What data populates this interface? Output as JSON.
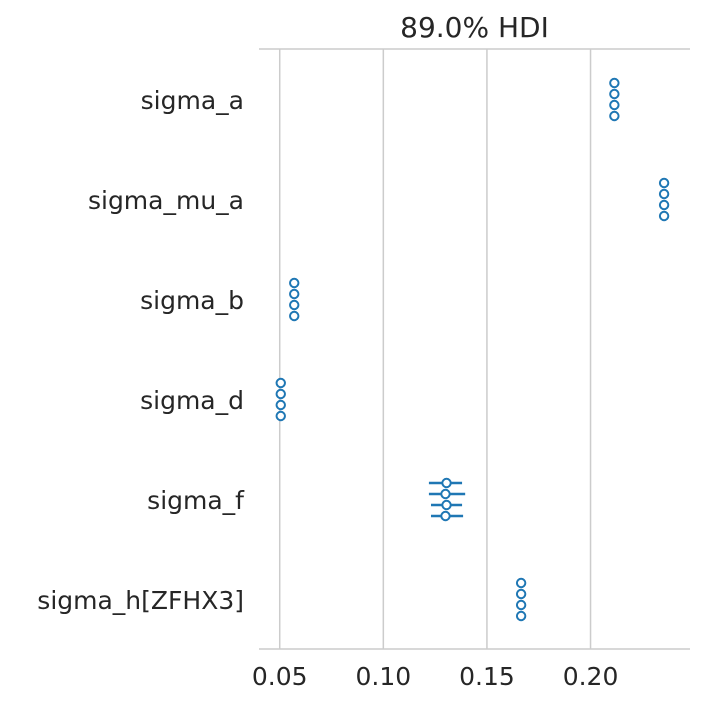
{
  "chart_data": {
    "type": "forest",
    "title": "89.0% HDI",
    "xlim": [
      0.04,
      0.248
    ],
    "xticks": [
      0.05,
      0.1,
      0.15,
      0.2
    ],
    "xtick_labels": [
      "0.05",
      "0.10",
      "0.15",
      "0.20"
    ],
    "grid": "vertical",
    "variables": [
      {
        "label": "sigma_a",
        "chains": [
          {
            "mean": 0.2115,
            "hdi": [
              0.2115,
              0.2115
            ]
          },
          {
            "mean": 0.2115,
            "hdi": [
              0.2115,
              0.2115
            ]
          },
          {
            "mean": 0.2115,
            "hdi": [
              0.2115,
              0.2115
            ]
          },
          {
            "mean": 0.2115,
            "hdi": [
              0.2115,
              0.2115
            ]
          }
        ]
      },
      {
        "label": "sigma_mu_a",
        "chains": [
          {
            "mean": 0.2355,
            "hdi": [
              0.2355,
              0.2355
            ]
          },
          {
            "mean": 0.2355,
            "hdi": [
              0.2355,
              0.2355
            ]
          },
          {
            "mean": 0.2355,
            "hdi": [
              0.2355,
              0.2355
            ]
          },
          {
            "mean": 0.2355,
            "hdi": [
              0.2355,
              0.2355
            ]
          }
        ]
      },
      {
        "label": "sigma_b",
        "chains": [
          {
            "mean": 0.057,
            "hdi": [
              0.057,
              0.057
            ]
          },
          {
            "mean": 0.057,
            "hdi": [
              0.057,
              0.057
            ]
          },
          {
            "mean": 0.057,
            "hdi": [
              0.057,
              0.057
            ]
          },
          {
            "mean": 0.057,
            "hdi": [
              0.057,
              0.057
            ]
          }
        ]
      },
      {
        "label": "sigma_d",
        "chains": [
          {
            "mean": 0.0505,
            "hdi": [
              0.0505,
              0.0505
            ]
          },
          {
            "mean": 0.0505,
            "hdi": [
              0.0505,
              0.0505
            ]
          },
          {
            "mean": 0.0505,
            "hdi": [
              0.0505,
              0.0505
            ]
          },
          {
            "mean": 0.0505,
            "hdi": [
              0.0505,
              0.0505
            ]
          }
        ]
      },
      {
        "label": "sigma_f",
        "chains": [
          {
            "mean": 0.1305,
            "hdi": [
              0.122,
              0.138
            ]
          },
          {
            "mean": 0.13,
            "hdi": [
              0.122,
              0.1395
            ]
          },
          {
            "mean": 0.1305,
            "hdi": [
              0.123,
              0.138
            ]
          },
          {
            "mean": 0.13,
            "hdi": [
              0.123,
              0.1385
            ]
          }
        ]
      },
      {
        "label": "sigma_h[ZFHX3]",
        "chains": [
          {
            "mean": 0.1665,
            "hdi": [
              0.1665,
              0.1665
            ]
          },
          {
            "mean": 0.1665,
            "hdi": [
              0.1665,
              0.1665
            ]
          },
          {
            "mean": 0.1665,
            "hdi": [
              0.1665,
              0.1665
            ]
          },
          {
            "mean": 0.1665,
            "hdi": [
              0.1665,
              0.1665
            ]
          }
        ]
      }
    ],
    "colors": {
      "series": "#1f77b4",
      "grid": "#cccccc",
      "text": "#262626"
    }
  }
}
